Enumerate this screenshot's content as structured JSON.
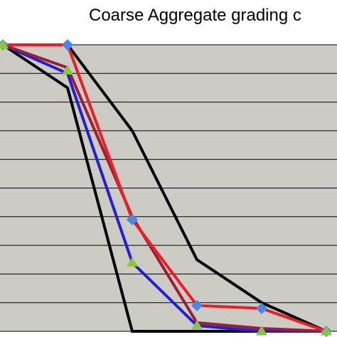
{
  "chart_data": {
    "type": "line",
    "title": "Coarse Aggregate grading c",
    "xlabel": "",
    "ylabel": "",
    "x": [
      0,
      1,
      2,
      3,
      4,
      5
    ],
    "ylim": [
      0,
      100
    ],
    "grid": true,
    "background_color": "#ccccc4",
    "series": [
      {
        "color": "#000000",
        "marker": "none",
        "values": [
          100,
          100,
          70,
          25,
          10,
          0
        ]
      },
      {
        "color": "#000000",
        "marker": "none",
        "values": [
          100,
          85,
          0,
          0,
          0,
          0
        ]
      },
      {
        "color": "#1f1fd6",
        "marker": "none",
        "values": [
          100,
          90,
          24,
          2,
          0,
          0
        ]
      },
      {
        "color": "#9c1f3a",
        "marker": "none",
        "values": [
          100,
          92,
          40,
          3,
          1,
          0
        ]
      },
      {
        "color": "#ee1c24",
        "marker": "none",
        "values": [
          100,
          100,
          39,
          9,
          8,
          0
        ]
      },
      {
        "color": "#4a86e8",
        "marker": "diamond",
        "line": false,
        "values": [
          100,
          100,
          39,
          9,
          8,
          0
        ]
      },
      {
        "color": "#8cc43c",
        "marker": "triangle",
        "line": false,
        "values": [
          100,
          91,
          24,
          2,
          0,
          0
        ]
      }
    ]
  }
}
